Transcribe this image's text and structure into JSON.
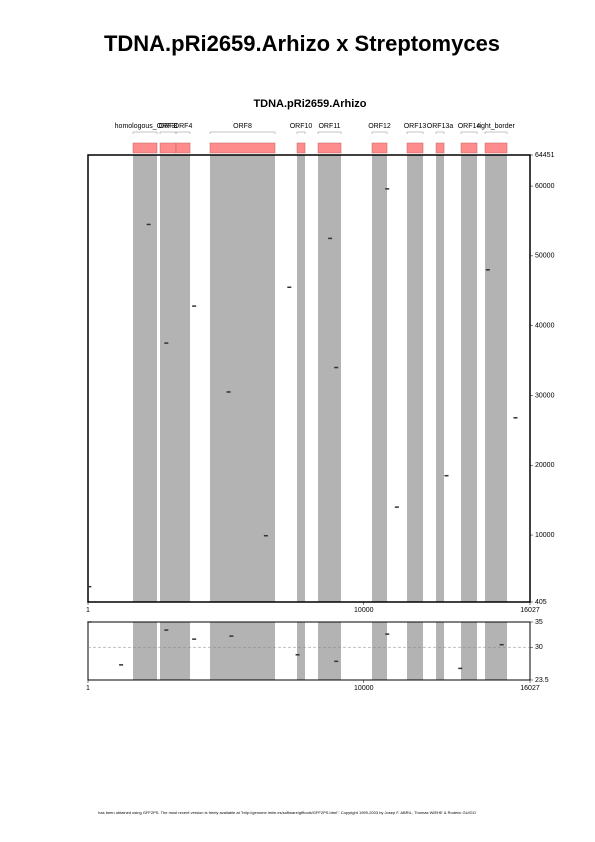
{
  "title": "TDNA.pRi2659.Arhizo x Streptomyces",
  "footer": "has been obtained using GFF2PS. The most recent version is freely available at \"http://genome.imim.es/software/gfftools/GFF2PS.html\". Copyright 1999-2003 by Josep F. ABRIL, Thomas WIEHE & Roderic GUIGO",
  "chart_data": [
    {
      "type": "dotplot",
      "title": "TDNA.pRi2659.Arhizo",
      "features": [
        {
          "name": "homologous_ORF3",
          "start": 1633,
          "end": 2503
        },
        {
          "name": "ORF3",
          "start": 2612,
          "end": 3192
        },
        {
          "name": "ORF4",
          "start": 3192,
          "end": 3700
        },
        {
          "name": "ORF8",
          "start": 4425,
          "end": 6782
        },
        {
          "name": "ORF10",
          "start": 7579,
          "end": 7869
        },
        {
          "name": "ORF11",
          "start": 8341,
          "end": 9175
        },
        {
          "name": "ORF12",
          "start": 10299,
          "end": 10843
        },
        {
          "name": "ORF13",
          "start": 11568,
          "end": 12148
        },
        {
          "name": "ORF13a",
          "start": 12620,
          "end": 12910
        },
        {
          "name": "ORF14",
          "start": 13526,
          "end": 14106
        },
        {
          "name": "right_border",
          "start": 14396,
          "end": 15194
        }
      ],
      "feature_color": "#ff8c8c",
      "band_color": "#b3b3b3",
      "x": [
        50,
        10850,
        6450,
        2840,
        3850,
        8780,
        15500,
        9000,
        13000,
        2200,
        5100,
        7300,
        11200,
        14500
      ],
      "y": [
        2600,
        59600,
        9900,
        37500,
        42800,
        52500,
        26800,
        34000,
        18500,
        54500,
        30500,
        45500,
        14000,
        48000
      ],
      "xlim": [
        1,
        16027
      ],
      "xticks": [
        1,
        10000,
        16027
      ],
      "ylim": [
        405,
        64451
      ],
      "yticks": [
        405,
        10000,
        20000,
        30000,
        40000,
        50000,
        60000,
        64451
      ]
    },
    {
      "type": "score",
      "x": [
        50,
        2840,
        3850,
        5200,
        10850,
        15000,
        9000,
        13500,
        1200,
        7600
      ],
      "values": [
        35.0,
        33.4,
        31.6,
        32.2,
        32.6,
        30.5,
        27.2,
        25.8,
        26.5,
        28.5
      ],
      "xlim": [
        1,
        16027
      ],
      "xticks": [
        1,
        10000,
        16027
      ],
      "ylim": [
        23.5,
        35.0
      ],
      "yticks": [
        23.5,
        30.0,
        35.0
      ],
      "grid": "dashed"
    }
  ]
}
